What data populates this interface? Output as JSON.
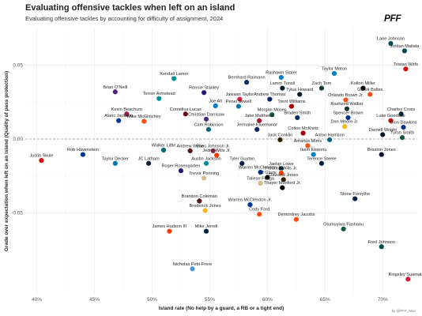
{
  "header": {
    "title": "Evaluating offensive tackles when left on an island",
    "subtitle": "Evaluating offensive tackles by accounting for difficulty of assignment, 2024",
    "logo": "PFF",
    "credit": "by @PFF_Moo"
  },
  "colors": {
    "grid": "#e6e6e6",
    "zero_line": "#999999",
    "marker_default": "#7a7a7a"
  },
  "chart_data": {
    "type": "scatter",
    "title": "Evaluating offensive tackles when left on an island",
    "subtitle": "Evaluating offensive tackles by accounting for difficulty of assignment, 2024",
    "xlabel": "Island rate (No help by a guard, a RB or a tight end)",
    "ylabel": "Grade over expectation when left on an island (Quality of pass protection)",
    "xlim": [
      0.39,
      0.73
    ],
    "ylim": [
      -0.105,
      0.075
    ],
    "x_ticks": [
      0.4,
      0.45,
      0.5,
      0.55,
      0.6,
      0.65,
      0.7
    ],
    "x_tick_labels": [
      "40%",
      "45%",
      "50%",
      "55%",
      "60%",
      "65%",
      "70%"
    ],
    "y_ticks": [
      -0.05,
      0.0,
      0.05
    ],
    "y_tick_labels": [
      "-0.05",
      "0.00",
      "0.05"
    ],
    "grid": true,
    "reference_line_y": 0,
    "points": [
      {
        "name": "Lane Johnson",
        "x": 0.707,
        "y": 0.0648,
        "color": "#004C54"
      },
      {
        "name": "Jordan Mailata",
        "x": 0.719,
        "y": 0.0598,
        "color": "#004C54"
      },
      {
        "name": "Tristan Wirfs",
        "x": 0.72,
        "y": 0.0475,
        "color": "#D50A0A"
      },
      {
        "name": "Taylor Moton",
        "x": 0.658,
        "y": 0.0445,
        "color": "#0085CA"
      },
      {
        "name": "Rashawn Slater",
        "x": 0.612,
        "y": 0.0418,
        "color": "#0080C6"
      },
      {
        "name": "Kendall Lamm",
        "x": 0.519,
        "y": 0.041,
        "color": "#008E97"
      },
      {
        "name": "Bernhard Raimann",
        "x": 0.582,
        "y": 0.0385,
        "color": "#002C5F"
      },
      {
        "name": "Lamm Tunsil",
        "x": 0.613,
        "y": 0.0345,
        "color": "#03202F"
      },
      {
        "name": "Zach Tom",
        "x": 0.647,
        "y": 0.0345,
        "color": "#203731"
      },
      {
        "name": "Kolton Miller",
        "x": 0.683,
        "y": 0.0345,
        "color": "#000000"
      },
      {
        "name": "Brian O'Neill",
        "x": 0.468,
        "y": 0.032,
        "color": "#4F2683"
      },
      {
        "name": "Ronnie Stanley",
        "x": 0.545,
        "y": 0.0315,
        "color": "#241773"
      },
      {
        "name": "Tytus Howard",
        "x": 0.628,
        "y": 0.0303,
        "color": "#03202F"
      },
      {
        "name": "Garett Bolles",
        "x": 0.689,
        "y": 0.0303,
        "color": "#FB4F14"
      },
      {
        "name": "Terron Armstead",
        "x": 0.506,
        "y": 0.0275,
        "color": "#008E97"
      },
      {
        "name": "Jawaan Taylor",
        "x": 0.576,
        "y": 0.027,
        "color": "#E31837"
      },
      {
        "name": "Andrew Thomas",
        "x": 0.602,
        "y": 0.027,
        "color": "#0B2265"
      },
      {
        "name": "Orlando Brown Jr.",
        "x": 0.668,
        "y": 0.0265,
        "color": "#FB4F14"
      },
      {
        "name": "Joe Alt",
        "x": 0.555,
        "y": 0.0225,
        "color": "#0080C6"
      },
      {
        "name": "Penei Sewell",
        "x": 0.575,
        "y": 0.0222,
        "color": "#0076B6"
      },
      {
        "name": "Trent Williams",
        "x": 0.621,
        "y": 0.0222,
        "color": "#AA0000"
      },
      {
        "name": "Rasheed Walker",
        "x": 0.669,
        "y": 0.0205,
        "color": "#203731"
      },
      {
        "name": "Kevin Beachum",
        "x": 0.478,
        "y": 0.017,
        "color": "#97233F"
      },
      {
        "name": "Cornelius Lucas",
        "x": 0.529,
        "y": 0.017,
        "color": "#5A1414"
      },
      {
        "name": "Morgan Moses",
        "x": 0.604,
        "y": 0.0165,
        "color": "#125740"
      },
      {
        "name": "Charles Cross",
        "x": 0.716,
        "y": 0.017,
        "color": "#002244"
      },
      {
        "name": "Alaric Jackson",
        "x": 0.471,
        "y": 0.0125,
        "color": "#003594"
      },
      {
        "name": "Mike McGlinchey",
        "x": 0.493,
        "y": 0.012,
        "color": "#FB4F14"
      },
      {
        "name": "Christian Darrisaw",
        "x": 0.547,
        "y": 0.0135,
        "color": "#4F2683"
      },
      {
        "name": "Jake Matthews",
        "x": 0.593,
        "y": 0.0125,
        "color": "#A71930"
      },
      {
        "name": "Braden Smith",
        "x": 0.626,
        "y": 0.0145,
        "color": "#002C5F"
      },
      {
        "name": "Spencer Brown",
        "x": 0.67,
        "y": 0.0145,
        "color": "#00338D"
      },
      {
        "name": "Luke Goedeke",
        "x": 0.707,
        "y": 0.0125,
        "color": "#D50A0A"
      },
      {
        "name": "Dion Dawkins",
        "x": 0.718,
        "y": 0.008,
        "color": "#00338D"
      },
      {
        "name": "Cam Robinson",
        "x": 0.549,
        "y": 0.0065,
        "color": "#006778"
      },
      {
        "name": "Jermaine Eluemunor",
        "x": 0.591,
        "y": 0.0065,
        "color": "#0B2265"
      },
      {
        "name": "Dan Moore Jr.",
        "x": 0.667,
        "y": 0.0085,
        "color": "#FFB612"
      },
      {
        "name": "Colton McKivitz",
        "x": 0.631,
        "y": 0.004,
        "color": "#AA0000"
      },
      {
        "name": "Darnell Wright",
        "x": 0.7,
        "y": 0.003,
        "color": "#0B162A"
      },
      {
        "name": "Tyron Smith",
        "x": 0.717,
        "y": 0.001,
        "color": "#125740"
      },
      {
        "name": "Jack Conklin",
        "x": 0.611,
        "y": -0.0005,
        "color": "#311D00"
      },
      {
        "name": "Anton Harrison",
        "x": 0.654,
        "y": -0.0005,
        "color": "#006778"
      },
      {
        "name": "Amarius Mims",
        "x": 0.635,
        "y": -0.0045,
        "color": "#FB4F14"
      },
      {
        "name": "Walker Little",
        "x": 0.51,
        "y": -0.0075,
        "color": "#006778"
      },
      {
        "name": "Andrew Wylie",
        "x": 0.533,
        "y": -0.008,
        "color": "#5A1414"
      },
      {
        "name": "Paris Johnson Jr.",
        "x": 0.553,
        "y": -0.008,
        "color": "#97233F"
      },
      {
        "name": "Rob Havenstein",
        "x": 0.44,
        "y": -0.0105,
        "color": "#003594"
      },
      {
        "name": "Jedrik Wills Jr.",
        "x": 0.556,
        "y": -0.011,
        "color": "#FF3C00"
      },
      {
        "name": "Ikem Ekwonu",
        "x": 0.64,
        "y": -0.0105,
        "color": "#0085CA"
      },
      {
        "name": "Braxton Jones",
        "x": 0.699,
        "y": -0.0105,
        "color": "#0B162A"
      },
      {
        "name": "Justin Skule",
        "x": 0.404,
        "y": -0.0145,
        "color": "#D50A0A"
      },
      {
        "name": "Taylor Decker",
        "x": 0.468,
        "y": -0.0165,
        "color": "#0076B6"
      },
      {
        "name": "JC Latham",
        "x": 0.497,
        "y": -0.0165,
        "color": "#0C2340"
      },
      {
        "name": "Austin Jackson",
        "x": 0.547,
        "y": -0.0165,
        "color": "#008E97"
      },
      {
        "name": "Tyler Guyton",
        "x": 0.578,
        "y": -0.0165,
        "color": "#041E42"
      },
      {
        "name": "Terence Steele",
        "x": 0.647,
        "y": -0.0165,
        "color": "#041E42"
      },
      {
        "name": "Roger Rosengarten",
        "x": 0.525,
        "y": -0.0215,
        "color": "#241773"
      },
      {
        "name": "Jaelan Lowe",
        "x": 0.612,
        "y": -0.02,
        "color": "#002244"
      },
      {
        "name": "Warren McClendon Jr.",
        "x": 0.594,
        "y": -0.0225,
        "color": "#003594"
      },
      {
        "name": "Fredrick Wills Jr.",
        "x": 0.612,
        "y": -0.023,
        "color": "#FF3C00"
      },
      {
        "name": "DJ Glaze",
        "x": 0.6,
        "y": -0.026,
        "color": "#000000"
      },
      {
        "name": "Trevor Penning",
        "x": 0.545,
        "y": -0.0265,
        "color": "#D3BC8D"
      },
      {
        "name": "Dawand Jones",
        "x": 0.614,
        "y": -0.0275,
        "color": "#311D00"
      },
      {
        "name": "Taliese Fuaga",
        "x": 0.594,
        "y": -0.03,
        "color": "#D3BC8D"
      },
      {
        "name": "Thayer Munford Jr.",
        "x": 0.613,
        "y": -0.033,
        "color": "#000000"
      },
      {
        "name": "Brandon Coleman",
        "x": 0.541,
        "y": -0.042,
        "color": "#5A1414"
      },
      {
        "name": "Warren McClendon Jr.",
        "x": 0.585,
        "y": -0.0445,
        "color": "#003594"
      },
      {
        "name": "Stone Forsythe",
        "x": 0.676,
        "y": -0.0405,
        "color": "#002244"
      },
      {
        "name": "Broderick Jones",
        "x": 0.546,
        "y": -0.0485,
        "color": "#FFB612"
      },
      {
        "name": "Cody Ford",
        "x": 0.593,
        "y": -0.051,
        "color": "#FB4F14"
      },
      {
        "name": "Demontrey Jacobs",
        "x": 0.625,
        "y": -0.0545,
        "color": "#FB4F14"
      },
      {
        "name": "James Hudson III",
        "x": 0.515,
        "y": -0.0625,
        "color": "#FF3C00"
      },
      {
        "name": "Mike Jerrell",
        "x": 0.547,
        "y": -0.0625,
        "color": "#002244"
      },
      {
        "name": "Olumuyiwa Fashanu",
        "x": 0.666,
        "y": -0.061,
        "color": "#125740"
      },
      {
        "name": "Fred Johnson",
        "x": 0.699,
        "y": -0.073,
        "color": "#004C54"
      },
      {
        "name": "Nicholas Petit-Frere",
        "x": 0.535,
        "y": -0.088,
        "color": "#4B92DB"
      },
      {
        "name": "Kingsley Suamataia",
        "x": 0.722,
        "y": -0.095,
        "color": "#E31837"
      }
    ]
  }
}
